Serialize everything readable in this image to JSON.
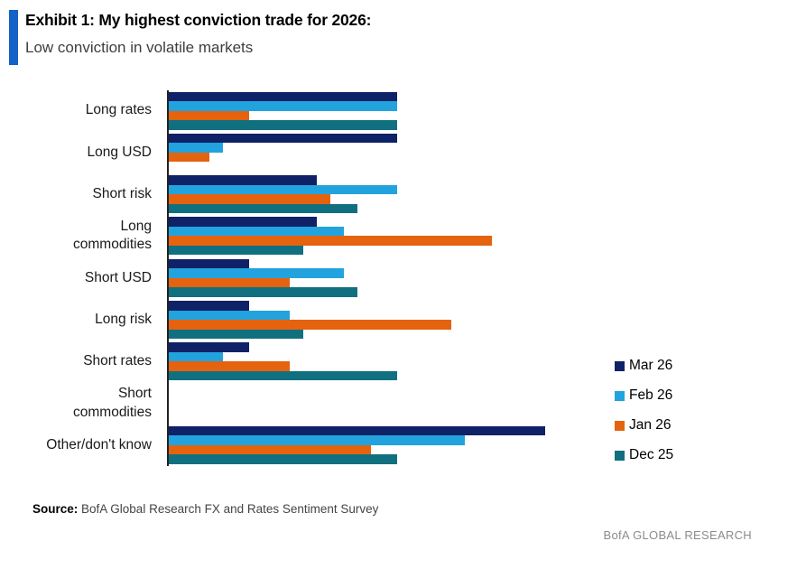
{
  "header": {
    "title": "Exhibit 1: My highest conviction trade for 2026:",
    "subtitle": "Low conviction in volatile markets"
  },
  "chart_data": {
    "type": "bar",
    "orientation": "horizontal",
    "title": "Exhibit 1: My highest conviction trade for 2026: Low conviction in volatile markets",
    "categories": [
      "Long rates",
      "Long USD",
      "Short risk",
      "Long\ncommodities",
      "Short USD",
      "Long risk",
      "Short rates",
      "Short\ncommodities",
      "Other/don't know"
    ],
    "series": [
      {
        "name": "Mar 26",
        "color": "#0f2167",
        "values": [
          17,
          17,
          11,
          11,
          6,
          6,
          6,
          0,
          28
        ]
      },
      {
        "name": "Feb 26",
        "color": "#22a3de",
        "values": [
          17,
          4,
          17,
          13,
          13,
          9,
          4,
          0,
          22
        ]
      },
      {
        "name": "Jan 26",
        "color": "#e5620f",
        "values": [
          6,
          3,
          12,
          24,
          9,
          21,
          9,
          0,
          15
        ]
      },
      {
        "name": "Dec 25",
        "color": "#11707f",
        "values": [
          17,
          0,
          14,
          10,
          14,
          10,
          17,
          0,
          17
        ]
      }
    ],
    "xlim": [
      0,
      30
    ],
    "x_axis_labels_visible": false,
    "grid": false,
    "legend_position": "right"
  },
  "footer": {
    "source_label": "Source:",
    "source_text": " BofA Global Research FX and Rates Sentiment Survey",
    "brand": "BofA GLOBAL RESEARCH"
  },
  "colors": {
    "accent_bar": "#1262c7",
    "axis_line": "#222222"
  }
}
